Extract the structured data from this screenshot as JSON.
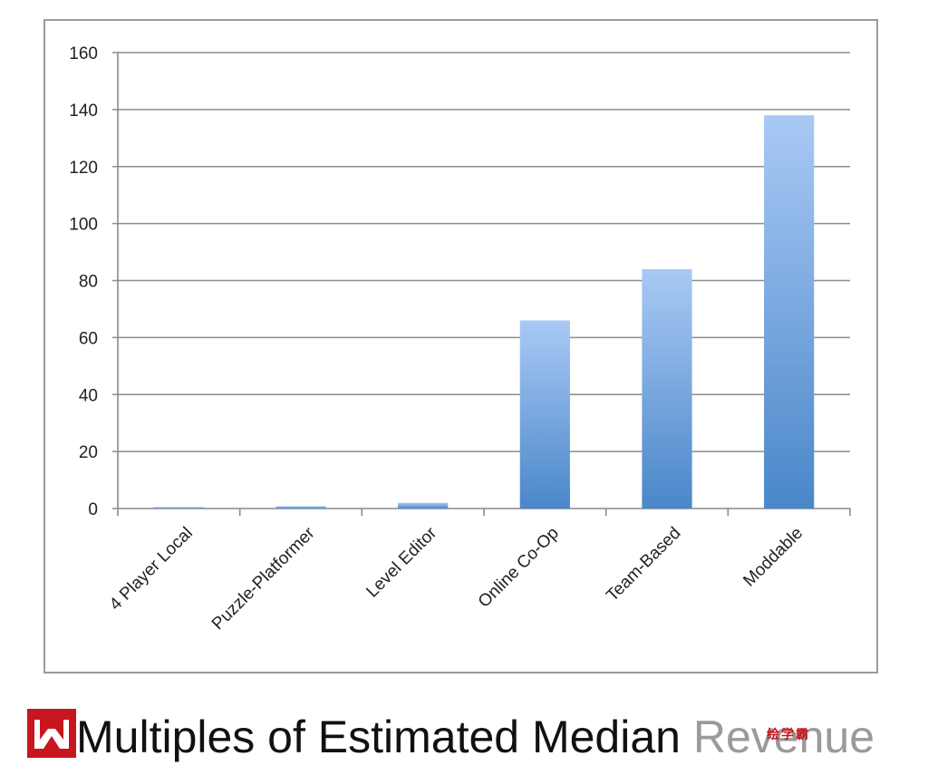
{
  "chart_data": {
    "type": "bar",
    "categories": [
      "4 Player Local",
      "Puzzle-Platformer",
      "Level Editor",
      "Online Co-Op",
      "Team-Based",
      "Moddable"
    ],
    "values": [
      0.5,
      0.8,
      2,
      66,
      84,
      138
    ],
    "ylim": [
      0,
      160
    ],
    "yticks": [
      0,
      20,
      40,
      60,
      80,
      100,
      120,
      140,
      160
    ],
    "grid": true,
    "bar_color_top": "#a9c9f5",
    "bar_color_bottom": "#4a87c9"
  },
  "caption": {
    "title_main": "Multiples of Estimated Median ",
    "title_faded": "Revenue"
  },
  "watermark": {
    "text": "绘学霸"
  }
}
